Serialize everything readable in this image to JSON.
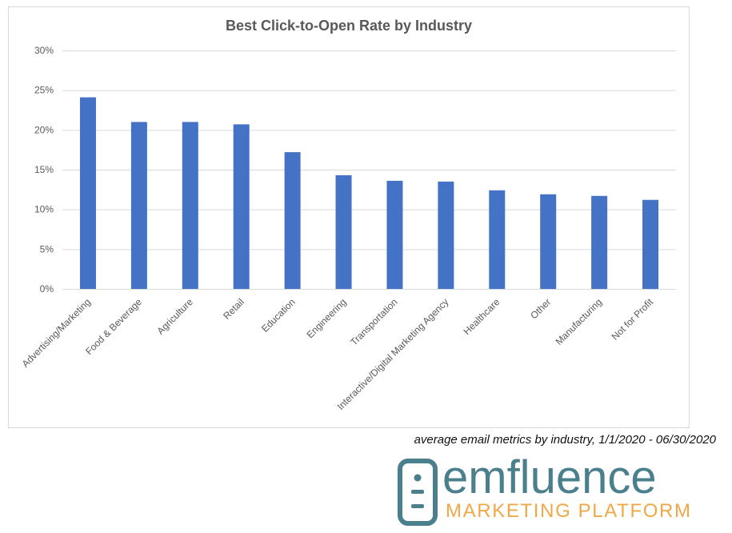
{
  "chart_data": {
    "type": "bar",
    "title": "Best Click-to-Open Rate by Industry",
    "categories": [
      "Advertising/Marketing",
      "Food & Beverage",
      "Agriculture",
      "Retail",
      "Education",
      "Engineering",
      "Transportation",
      "Interactive/Digital Marketing Agency",
      "Healthcare",
      "Other",
      "Manufacturing",
      "Not for Profit"
    ],
    "values": [
      24.1,
      21,
      21,
      20.7,
      17.2,
      14.3,
      13.6,
      13.5,
      12.4,
      11.9,
      11.7,
      11.2
    ],
    "color": "#4472c4",
    "ylim": [
      0,
      30
    ],
    "yticks": [
      {
        "value": 0,
        "label": "0%"
      },
      {
        "value": 5,
        "label": "5%"
      },
      {
        "value": 10,
        "label": "10%"
      },
      {
        "value": 15,
        "label": "15%"
      },
      {
        "value": 20,
        "label": "20%"
      },
      {
        "value": 25,
        "label": "25%"
      },
      {
        "value": 30,
        "label": "30%"
      }
    ],
    "grid": true
  },
  "caption": "average email metrics by industry, 1/1/2020 - 06/30/2020",
  "logo": {
    "name": "emfluence",
    "tagline": "MARKETING PLATFORM"
  }
}
